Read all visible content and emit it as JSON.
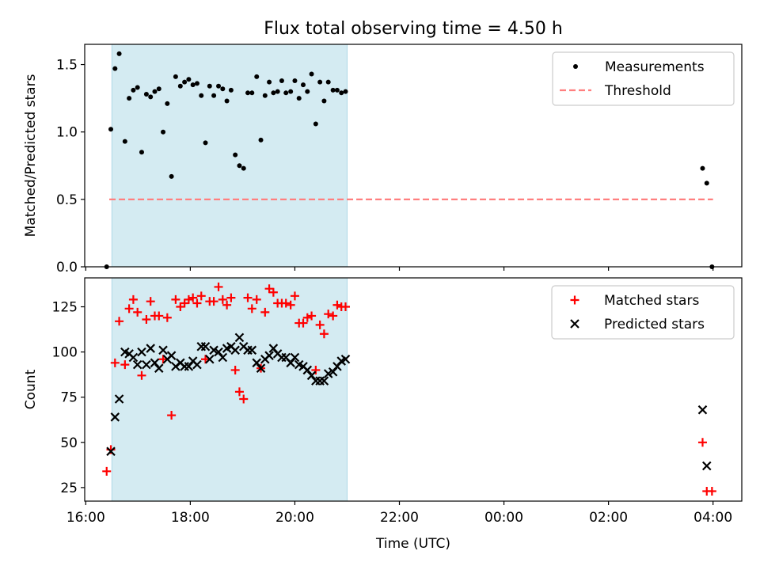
{
  "chart_data": [
    {
      "type": "scatter",
      "title": "Flux total observing time = 4.50 h",
      "xlabel": "",
      "ylabel": "Matched/Predicted stars",
      "x_unit": "hours (UTC, continuing past midnight)",
      "xlim": [
        15.98,
        28.55
      ],
      "ylim": [
        0.0,
        1.65
      ],
      "yticks": [
        0.0,
        0.5,
        1.0,
        1.5
      ],
      "ytick_labels": [
        "0.0",
        "0.5",
        "1.0",
        "1.5"
      ],
      "shaded_span": [
        16.5,
        21.0
      ],
      "shade_color": "#add8e6",
      "legend_position": "upper-right",
      "series": [
        {
          "name": "Measurements",
          "marker": "dot",
          "color": "#000000",
          "x": [
            16.4,
            16.48,
            16.56,
            16.64,
            16.75,
            16.83,
            16.91,
            16.99,
            17.07,
            17.16,
            17.24,
            17.32,
            17.4,
            17.48,
            17.56,
            17.64,
            17.72,
            17.81,
            17.89,
            17.97,
            18.05,
            18.13,
            18.21,
            18.29,
            18.37,
            18.45,
            18.54,
            18.62,
            18.7,
            18.78,
            18.86,
            18.94,
            19.02,
            19.1,
            19.18,
            19.27,
            19.35,
            19.43,
            19.51,
            19.59,
            19.67,
            19.75,
            19.83,
            19.92,
            20.0,
            20.08,
            20.16,
            20.24,
            20.32,
            20.4,
            20.48,
            20.56,
            20.64,
            20.73,
            20.81,
            20.89,
            20.97,
            27.8,
            27.88,
            27.98
          ],
          "y": [
            0.0,
            1.02,
            1.47,
            1.58,
            0.93,
            1.25,
            1.31,
            1.33,
            0.85,
            1.28,
            1.26,
            1.3,
            1.32,
            1.0,
            1.21,
            0.67,
            1.41,
            1.34,
            1.37,
            1.39,
            1.35,
            1.36,
            1.27,
            0.92,
            1.34,
            1.27,
            1.34,
            1.32,
            1.23,
            1.31,
            0.83,
            0.75,
            0.73,
            1.29,
            1.29,
            1.41,
            0.94,
            1.27,
            1.37,
            1.29,
            1.3,
            1.38,
            1.29,
            1.3,
            1.38,
            1.25,
            1.35,
            1.3,
            1.43,
            1.06,
            1.37,
            1.23,
            1.37,
            1.31,
            1.31,
            1.29,
            1.3,
            0.73,
            0.62,
            0.0
          ]
        },
        {
          "name": "Threshold",
          "marker": "dashed-line",
          "color": "#ff7f7f",
          "x": [
            16.45,
            28.0
          ],
          "y": [
            0.5,
            0.5
          ]
        }
      ]
    },
    {
      "type": "scatter",
      "title": "",
      "xlabel": "Time (UTC)",
      "ylabel": "Count",
      "xlim": [
        15.98,
        28.55
      ],
      "ylim": [
        17.5,
        141
      ],
      "yticks": [
        25,
        50,
        75,
        100,
        125
      ],
      "ytick_labels": [
        "25",
        "50",
        "75",
        "100",
        "125"
      ],
      "xticks": [
        16,
        18,
        20,
        22,
        24,
        26,
        28
      ],
      "xtick_labels": [
        "16:00",
        "18:00",
        "20:00",
        "22:00",
        "00:00",
        "02:00",
        "04:00"
      ],
      "shaded_span": [
        16.5,
        21.0
      ],
      "shade_color": "#add8e6",
      "legend_position": "upper-right",
      "series": [
        {
          "name": "Matched stars",
          "marker": "plus",
          "color": "#ff0000",
          "x": [
            16.4,
            16.48,
            16.56,
            16.64,
            16.75,
            16.83,
            16.91,
            16.99,
            17.07,
            17.16,
            17.24,
            17.32,
            17.4,
            17.48,
            17.56,
            17.64,
            17.72,
            17.81,
            17.89,
            17.97,
            18.05,
            18.13,
            18.21,
            18.29,
            18.37,
            18.45,
            18.54,
            18.62,
            18.7,
            18.78,
            18.86,
            18.94,
            19.02,
            19.1,
            19.18,
            19.27,
            19.35,
            19.43,
            19.51,
            19.59,
            19.67,
            19.75,
            19.83,
            19.92,
            20.0,
            20.08,
            20.16,
            20.24,
            20.32,
            20.4,
            20.48,
            20.56,
            20.64,
            20.73,
            20.81,
            20.89,
            20.97,
            27.8,
            27.88,
            27.98
          ],
          "y": [
            34,
            46,
            94,
            117,
            93,
            124,
            129,
            122,
            87,
            118,
            128,
            120,
            120,
            96,
            119,
            65,
            129,
            125,
            127,
            129,
            130,
            127,
            131,
            96,
            128,
            128,
            136,
            129,
            126,
            130,
            90,
            78,
            74,
            130,
            124,
            129,
            91,
            122,
            135,
            133,
            127,
            127,
            127,
            126,
            131,
            116,
            116,
            119,
            120,
            90,
            115,
            110,
            121,
            120,
            126,
            125,
            125,
            50,
            23,
            23
          ]
        },
        {
          "name": "Predicted stars",
          "marker": "x",
          "color": "#000000",
          "x": [
            16.48,
            16.56,
            16.64,
            16.75,
            16.83,
            16.91,
            16.99,
            17.07,
            17.16,
            17.24,
            17.32,
            17.4,
            17.48,
            17.56,
            17.64,
            17.72,
            17.81,
            17.89,
            17.97,
            18.05,
            18.13,
            18.21,
            18.29,
            18.37,
            18.45,
            18.54,
            18.62,
            18.7,
            18.78,
            18.86,
            18.94,
            19.02,
            19.1,
            19.18,
            19.27,
            19.35,
            19.43,
            19.51,
            19.59,
            19.67,
            19.75,
            19.83,
            19.92,
            20.0,
            20.08,
            20.16,
            20.24,
            20.32,
            20.4,
            20.48,
            20.56,
            20.64,
            20.73,
            20.81,
            20.89,
            20.97,
            27.8,
            27.88
          ],
          "y": [
            45,
            64,
            74,
            100,
            99,
            97,
            93,
            100,
            93,
            102,
            94,
            91,
            101,
            96,
            98,
            92,
            94,
            92,
            92,
            95,
            93,
            103,
            103,
            96,
            101,
            100,
            97,
            102,
            103,
            101,
            108,
            103,
            101,
            101,
            94,
            91,
            96,
            98,
            102,
            99,
            97,
            97,
            94,
            97,
            93,
            92,
            90,
            87,
            84,
            84,
            84,
            88,
            89,
            92,
            95,
            96,
            68,
            37
          ]
        }
      ]
    }
  ]
}
